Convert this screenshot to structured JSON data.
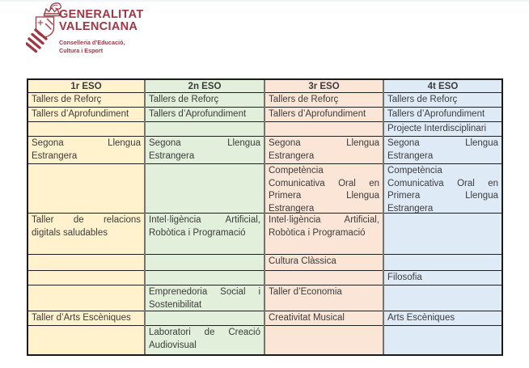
{
  "logo": {
    "crest_icon": "gva-crest-icon",
    "title_line1": "GENERALITAT",
    "title_line2": "VALENCIANA",
    "subtitle_line1": "Conselleria d’Educació,",
    "subtitle_line2": "Cultura i Esport",
    "brand_color": "#A13744"
  },
  "table": {
    "text_color": "#3c3c3c",
    "border_color": "#1a1a1a",
    "column_divider_color": "#74746c",
    "row_line_color": "#1f1f1f",
    "columns": [
      {
        "id": "1r-eso",
        "header": "1r ESO",
        "fill": "#FFF2CC",
        "cells": [
          [
            {
              "t": "Tallers de Reforç",
              "j": false
            }
          ],
          [
            {
              "t": "Tallers d’Aprofundiment",
              "j": false
            }
          ],
          [],
          [
            {
              "t": "Segona Llengua",
              "j": true
            },
            {
              "t": "Estrangera",
              "j": false
            }
          ],
          [],
          [
            {
              "t": "Taller de relacions",
              "j": true
            },
            {
              "t": "digitals saludables",
              "j": false
            }
          ],
          [],
          [],
          [],
          [
            {
              "t": "Taller d’Arts Escèniques",
              "j": false
            }
          ],
          []
        ]
      },
      {
        "id": "2n-eso",
        "header": "2n ESO",
        "fill": "#E2EFDA",
        "cells": [
          [
            {
              "t": "Tallers de Reforç",
              "j": false
            }
          ],
          [
            {
              "t": "Tallers d’Aprofundiment",
              "j": false
            }
          ],
          [],
          [
            {
              "t": "Segona Llengua",
              "j": true
            },
            {
              "t": "Estrangera",
              "j": false
            }
          ],
          [],
          [
            {
              "t": "Intel·ligència Artificial,",
              "j": true
            },
            {
              "t": "Robòtica i Programació",
              "j": false
            }
          ],
          [],
          [],
          [
            {
              "t": "Emprenedoria Social i",
              "j": true
            },
            {
              "t": "Sostenibilitat",
              "j": false
            }
          ],
          [],
          [
            {
              "t": "Laboratori de Creació",
              "j": true
            },
            {
              "t": "Audiovisual",
              "j": false
            }
          ]
        ]
      },
      {
        "id": "3r-eso",
        "header": "3r ESO",
        "fill": "#FBE5D6",
        "cells": [
          [
            {
              "t": "Tallers de Reforç",
              "j": false
            }
          ],
          [
            {
              "t": "Tallers d’Aprofundiment",
              "j": false
            }
          ],
          [],
          [
            {
              "t": "Segona Llengua",
              "j": true
            },
            {
              "t": "Estrangera",
              "j": false
            }
          ],
          [
            {
              "t": "Competència",
              "j": false
            },
            {
              "t": "Comunicativa Oral en",
              "j": true
            },
            {
              "t": "Primera Llengua",
              "j": true
            },
            {
              "t": "Estrangera",
              "j": false
            }
          ],
          [
            {
              "t": "Intel·ligència Artificial,",
              "j": true
            },
            {
              "t": "Robòtica i Programació",
              "j": false
            }
          ],
          [
            {
              "t": "Cultura Clàssica",
              "j": false
            }
          ],
          [],
          [
            {
              "t": "Taller d’Economia",
              "j": false
            }
          ],
          [
            {
              "t": "Creativitat Musical",
              "j": false
            }
          ],
          []
        ]
      },
      {
        "id": "4t-eso",
        "header": "4t ESO",
        "fill": "#DEEBF7",
        "cells": [
          [
            {
              "t": "Tallers de Reforç",
              "j": false
            }
          ],
          [
            {
              "t": "Tallers d’Aprofundiment",
              "j": false
            }
          ],
          [
            {
              "t": "Projecte Interdisciplinari",
              "j": false
            }
          ],
          [
            {
              "t": "Segona Llengua",
              "j": true
            },
            {
              "t": "Estrangera",
              "j": false
            }
          ],
          [
            {
              "t": "Competència",
              "j": false
            },
            {
              "t": "Comunicativa Oral en",
              "j": true
            },
            {
              "t": "Primera Llengua",
              "j": true
            },
            {
              "t": "Estrangera",
              "j": false
            }
          ],
          [],
          [],
          [
            {
              "t": "Filosofia",
              "j": false
            }
          ],
          [],
          [
            {
              "t": "Arts Escèniques",
              "j": false
            }
          ],
          []
        ]
      }
    ]
  }
}
